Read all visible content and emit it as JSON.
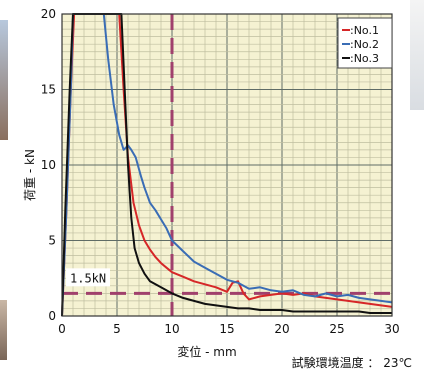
{
  "chart_data": {
    "type": "line",
    "xlabel": "変位 - mm",
    "ylabel": "荷重 - kN",
    "xlim": [
      0,
      30
    ],
    "ylim": [
      0,
      20
    ],
    "x_ticks": [
      "0",
      "5",
      "10",
      "15",
      "20",
      "25",
      "30"
    ],
    "y_ticks": [
      "0",
      "5",
      "10",
      "15",
      "20"
    ],
    "grid": true,
    "background_color": "#f5f2d2",
    "legend_position": "top-right",
    "series": [
      {
        "name": ":No.1",
        "color": "#d62728",
        "x": [
          0,
          0.4,
          0.8,
          1.1,
          5.2,
          5.6,
          6.0,
          6.5,
          7.0,
          7.5,
          8.0,
          8.5,
          9.0,
          9.5,
          10,
          11,
          12,
          13,
          14,
          15,
          15.5,
          16,
          16.5,
          17,
          18,
          19,
          20,
          21,
          22,
          23,
          24,
          25,
          26,
          27,
          28,
          29,
          30
        ],
        "y": [
          0,
          7,
          15,
          20,
          20,
          15,
          10.5,
          7.5,
          6.0,
          5.0,
          4.4,
          3.9,
          3.5,
          3.2,
          2.9,
          2.6,
          2.3,
          2.1,
          1.9,
          1.6,
          2.2,
          2.3,
          1.5,
          1.1,
          1.3,
          1.4,
          1.5,
          1.4,
          1.5,
          1.3,
          1.2,
          1.1,
          1.0,
          0.9,
          0.8,
          0.7,
          0.6
        ]
      },
      {
        "name": ":No.2",
        "color": "#3a6db5",
        "x": [
          0,
          0.4,
          0.8,
          1.0,
          3.8,
          4.2,
          4.7,
          5.2,
          5.6,
          6.0,
          6.3,
          6.7,
          7.2,
          7.5,
          8.0,
          8.5,
          9.0,
          9.5,
          10,
          11,
          12,
          13,
          14,
          15,
          16,
          17,
          18,
          19,
          20,
          21,
          22,
          23,
          24,
          25,
          26,
          27,
          28,
          29,
          30
        ],
        "y": [
          0,
          7,
          15,
          20,
          20,
          17,
          14,
          12,
          11,
          11.3,
          11.0,
          10.5,
          9.2,
          8.5,
          7.5,
          7.0,
          6.4,
          5.8,
          5.0,
          4.3,
          3.6,
          3.2,
          2.8,
          2.4,
          2.2,
          1.8,
          1.9,
          1.7,
          1.6,
          1.7,
          1.4,
          1.3,
          1.5,
          1.3,
          1.4,
          1.2,
          1.1,
          1.0,
          0.9
        ]
      },
      {
        "name": ":No.3",
        "color": "#111111",
        "x": [
          0,
          0.3,
          0.7,
          1.0,
          5.4,
          5.7,
          6.0,
          6.3,
          6.6,
          7.0,
          7.5,
          8.0,
          9.0,
          10,
          11,
          12,
          13,
          14,
          15,
          16,
          17,
          18,
          19,
          20,
          21,
          22,
          23,
          24,
          25,
          26,
          27,
          28,
          29,
          30
        ],
        "y": [
          0,
          7,
          15,
          20,
          20,
          15,
          10,
          6.5,
          4.5,
          3.5,
          2.8,
          2.3,
          1.9,
          1.5,
          1.2,
          1.0,
          0.8,
          0.7,
          0.6,
          0.5,
          0.5,
          0.4,
          0.4,
          0.4,
          0.3,
          0.3,
          0.3,
          0.3,
          0.3,
          0.3,
          0.3,
          0.2,
          0.2,
          0.2
        ]
      }
    ],
    "reference_lines": [
      {
        "orientation": "vertical",
        "value": 10,
        "color": "#a0406c"
      },
      {
        "orientation": "horizontal",
        "value": 1.5,
        "color": "#a0406c",
        "label": "1.5kN"
      }
    ],
    "note": "試験環境温度 ： 23℃"
  }
}
